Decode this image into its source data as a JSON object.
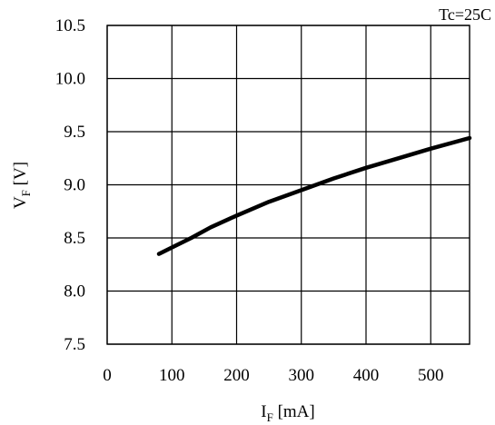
{
  "chart_data": {
    "type": "line",
    "annotation": "Tc=25C",
    "xlabel": {
      "main": "I",
      "sub": "F",
      "unit": " [mA]"
    },
    "ylabel": {
      "main": "V",
      "sub": "F",
      "unit": " [V]"
    },
    "xlim": [
      0,
      560
    ],
    "ylim": [
      7.5,
      10.5
    ],
    "x_ticks": [
      0,
      100,
      200,
      300,
      400,
      500
    ],
    "x_tick_labels": [
      "0",
      "100",
      "200",
      "300",
      "400",
      "500"
    ],
    "y_ticks": [
      7.5,
      8.0,
      8.5,
      9.0,
      9.5,
      10.0,
      10.5
    ],
    "y_tick_labels": [
      "7.5",
      "8.0",
      "8.5",
      "9.0",
      "9.5",
      "10.0",
      "10.5"
    ],
    "grid": true,
    "series": [
      {
        "x": [
          80,
          100,
          130,
          160,
          200,
          250,
          300,
          350,
          400,
          450,
          500,
          560
        ],
        "y": [
          8.35,
          8.41,
          8.5,
          8.6,
          8.71,
          8.84,
          8.95,
          9.06,
          9.16,
          9.25,
          9.34,
          9.44
        ]
      }
    ]
  }
}
